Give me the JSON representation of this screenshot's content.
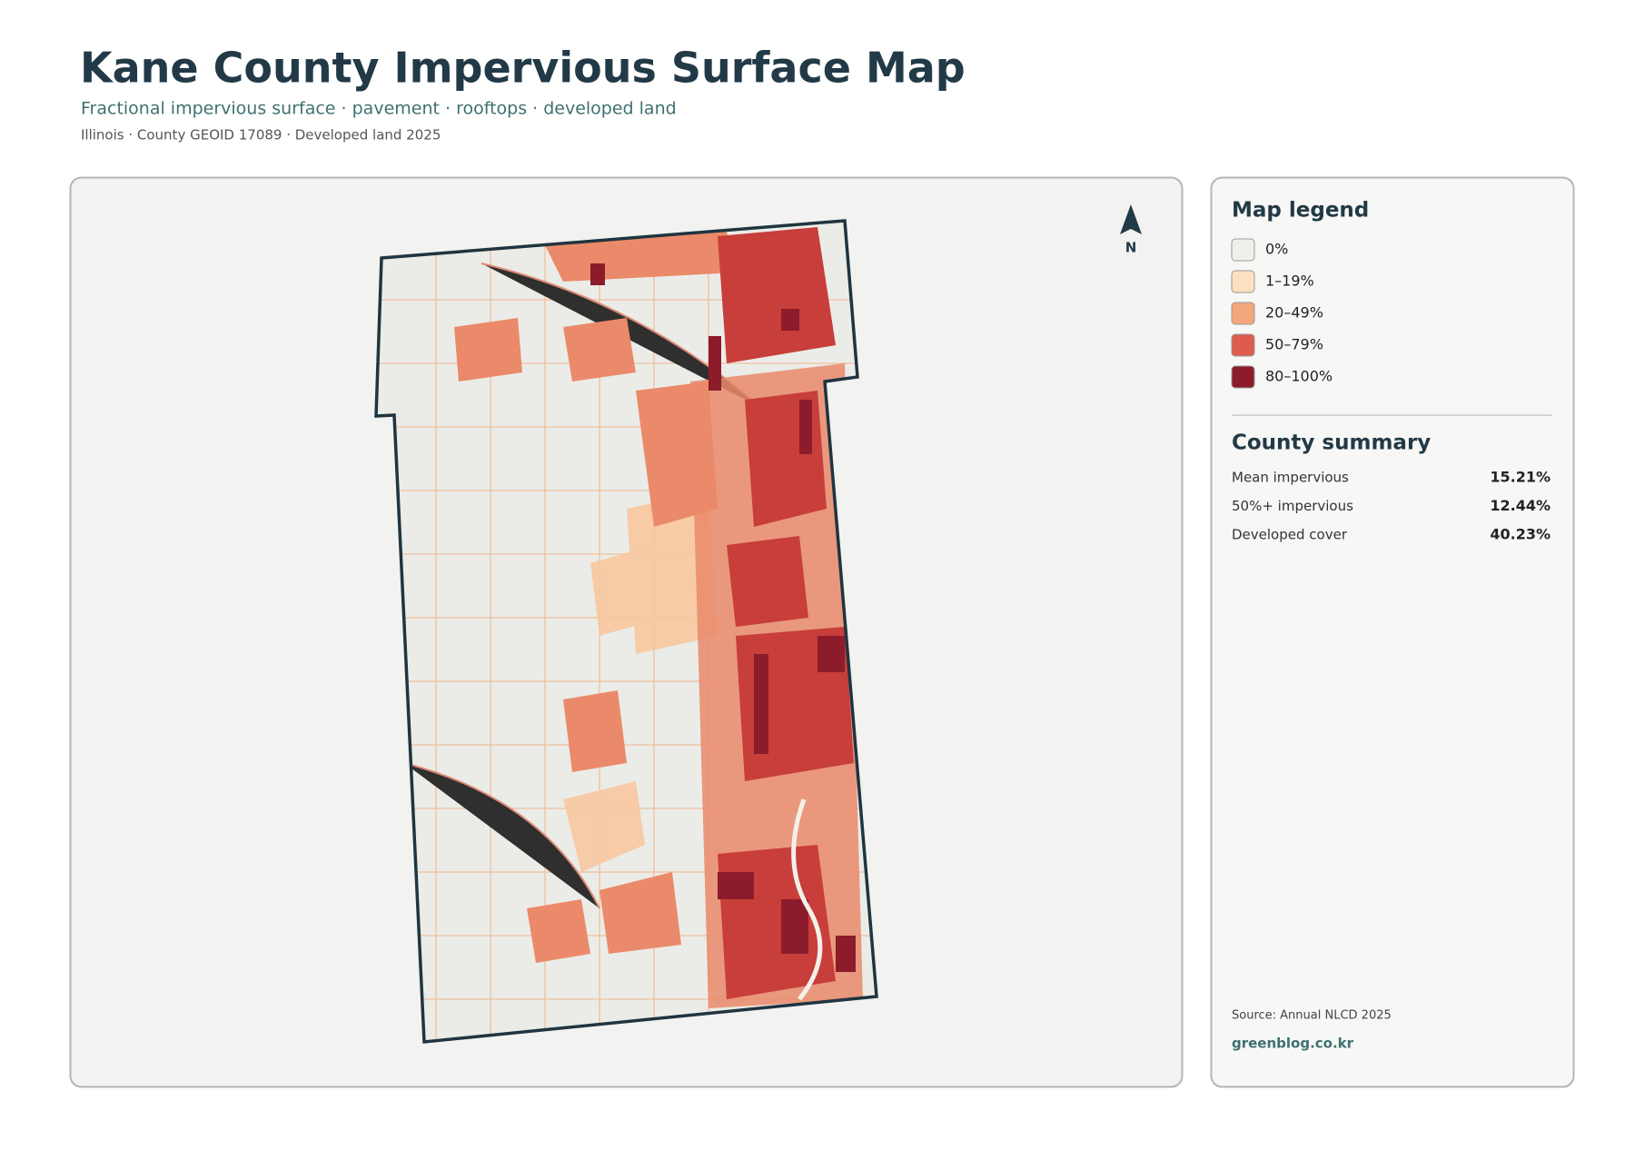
{
  "header": {
    "title": "Kane County Impervious Surface Map",
    "subtitle": "Fractional impervious surface · pavement · rooftops · developed land",
    "meta": "Illinois · County GEOID 17089 · Developed land 2025"
  },
  "map": {
    "north_label": "N"
  },
  "legend": {
    "title": "Map legend",
    "items": [
      {
        "label": "0%",
        "color": "#efefec"
      },
      {
        "label": "1–19%",
        "color": "#fde0c0"
      },
      {
        "label": "20–49%",
        "color": "#f4a67c"
      },
      {
        "label": "50–79%",
        "color": "#dd5c4d"
      },
      {
        "label": "80–100%",
        "color": "#8c1c2b"
      }
    ]
  },
  "summary": {
    "title": "County summary",
    "rows": [
      {
        "label": "Mean impervious",
        "value": "15.21%"
      },
      {
        "label": "50%+ impervious",
        "value": "12.44%"
      },
      {
        "label": "Developed cover",
        "value": "40.23%"
      }
    ]
  },
  "footer": {
    "source": "Source: Annual NLCD 2025",
    "site": "greenblog.co.kr"
  }
}
